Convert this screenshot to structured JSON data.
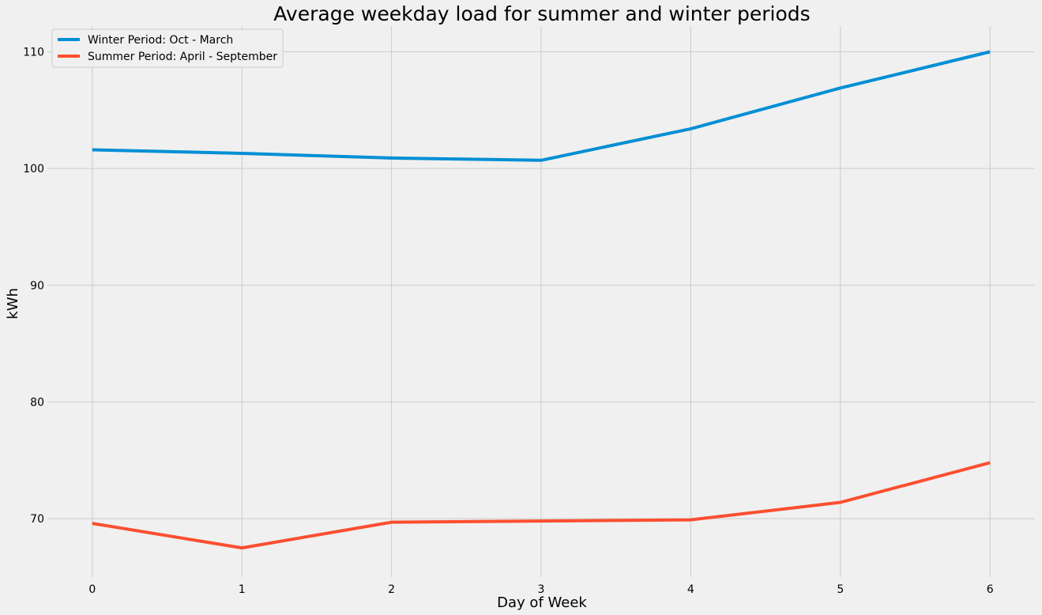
{
  "chart_data": {
    "type": "line",
    "title": "Average weekday load for summer and winter periods",
    "xlabel": "Day of Week",
    "ylabel": "kWh",
    "x": [
      0,
      1,
      2,
      3,
      4,
      5,
      6
    ],
    "x_ticks": [
      "0",
      "1",
      "2",
      "3",
      "4",
      "5",
      "6"
    ],
    "xlim": [
      -0.3,
      6.3
    ],
    "y_ticks": [
      70,
      80,
      90,
      100,
      110
    ],
    "y_tick_labels": [
      "70",
      "80",
      "90",
      "100",
      "110"
    ],
    "ylim": [
      65.0,
      112.2
    ],
    "grid": true,
    "legend_position": "top-left",
    "series": [
      {
        "name": "Winter Period: Oct - March",
        "color": "#008fd5",
        "values": [
          101.6,
          101.3,
          100.9,
          100.7,
          103.4,
          106.9,
          110.0
        ]
      },
      {
        "name": "Summer Period: April - September",
        "color": "#fc4f30",
        "values": [
          69.6,
          67.5,
          69.7,
          69.8,
          69.9,
          71.4,
          74.8
        ]
      }
    ]
  }
}
